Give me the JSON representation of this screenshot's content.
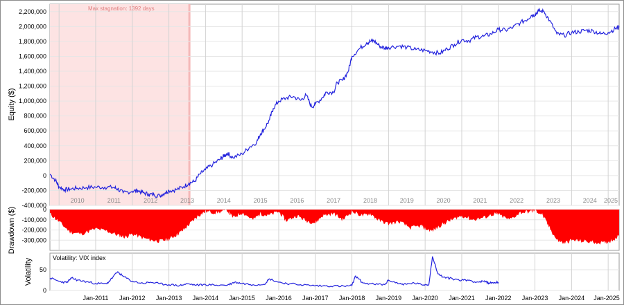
{
  "chart_data": [
    {
      "type": "line",
      "name": "equity",
      "ylabel": "Equity ($)",
      "ylim": [
        -400000,
        2300000
      ],
      "yticks": [
        -400000,
        -200000,
        0,
        200000,
        400000,
        600000,
        800000,
        1000000,
        1200000,
        1400000,
        1600000,
        1800000,
        2000000,
        2200000
      ],
      "ytick_labels": [
        "-400,000",
        "-200,000",
        "0",
        "200,000",
        "400,000",
        "600,000",
        "800,000",
        "1,000,000",
        "1,200,000",
        "1,400,000",
        "1,600,000",
        "1,800,000",
        "2,000,000",
        "2,200,000"
      ],
      "year_labels": [
        "2010",
        "2011",
        "2012",
        "2013",
        "2014",
        "2015",
        "2016",
        "2017",
        "2018",
        "2019",
        "2020",
        "2021",
        "2022",
        "2023",
        "2024",
        "2025"
      ],
      "annotation": "Max stagnation: 1392 days",
      "stagnation_period": [
        2009.75,
        2013.56
      ],
      "grid": true,
      "color": "#2222dd",
      "x": [
        2009.75,
        2009.9,
        2010.0,
        2010.15,
        2010.3,
        2010.5,
        2010.75,
        2011.0,
        2011.25,
        2011.5,
        2011.6,
        2011.75,
        2012.0,
        2012.15,
        2012.3,
        2012.45,
        2012.6,
        2012.75,
        2012.9,
        2013.0,
        2013.2,
        2013.4,
        2013.55,
        2013.7,
        2013.85,
        2014.0,
        2014.2,
        2014.4,
        2014.5,
        2014.6,
        2014.75,
        2015.0,
        2015.2,
        2015.4,
        2015.5,
        2015.6,
        2015.75,
        2015.85,
        2016.0,
        2016.2,
        2016.4,
        2016.6,
        2016.75,
        2016.9,
        2017.0,
        2017.2,
        2017.3,
        2017.5,
        2017.6,
        2017.75,
        2017.9,
        2018.0,
        2018.2,
        2018.4,
        2018.5,
        2018.6,
        2018.75,
        2018.9,
        2019.0,
        2019.3,
        2019.5,
        2019.75,
        2020.0,
        2020.2,
        2020.4,
        2020.6,
        2020.8,
        2021.0,
        2021.2,
        2021.4,
        2021.6,
        2021.8,
        2022.0,
        2022.2,
        2022.4,
        2022.6,
        2022.8,
        2022.9,
        2023.0,
        2023.1,
        2023.25,
        2023.4,
        2023.6,
        2023.8,
        2024.0,
        2024.2,
        2024.4,
        2024.6,
        2024.8,
        2025.0,
        2025.2,
        2025.3
      ],
      "y": [
        20000,
        -60000,
        -150000,
        -190000,
        -180000,
        -170000,
        -160000,
        -155000,
        -155000,
        -160000,
        -180000,
        -230000,
        -210000,
        -200000,
        -230000,
        -250000,
        -260000,
        -270000,
        -230000,
        -200000,
        -190000,
        -150000,
        -100000,
        -80000,
        20000,
        80000,
        150000,
        220000,
        260000,
        300000,
        240000,
        290000,
        380000,
        450000,
        560000,
        620000,
        750000,
        900000,
        1000000,
        1040000,
        1060000,
        1010000,
        1080000,
        920000,
        960000,
        1050000,
        1120000,
        1120000,
        1250000,
        1280000,
        1400000,
        1600000,
        1700000,
        1780000,
        1800000,
        1810000,
        1740000,
        1710000,
        1720000,
        1740000,
        1720000,
        1690000,
        1680000,
        1660000,
        1640000,
        1700000,
        1760000,
        1820000,
        1810000,
        1860000,
        1870000,
        1900000,
        1960000,
        1950000,
        1990000,
        2050000,
        2100000,
        2150000,
        2160000,
        2210000,
        2200000,
        2080000,
        1900000,
        1880000,
        1920000,
        1930000,
        1950000,
        1940000,
        1900000,
        1920000,
        1970000,
        1990000
      ]
    },
    {
      "type": "area",
      "name": "drawdown",
      "ylabel": "Drawdown ($)",
      "ylim": [
        -400000,
        0
      ],
      "yticks": [
        0,
        -100000,
        -200000,
        -300000
      ],
      "ytick_labels": [
        "0",
        "-100,000",
        "-200,000",
        "-300,000"
      ],
      "color": "#ff0000",
      "grid": true,
      "x": [
        2009.75,
        2010.0,
        2010.3,
        2010.6,
        2011.0,
        2011.3,
        2011.6,
        2011.8,
        2012.0,
        2012.3,
        2012.5,
        2012.75,
        2013.0,
        2013.2,
        2013.4,
        2013.6,
        2013.8,
        2014.0,
        2014.3,
        2014.6,
        2014.75,
        2015.0,
        2015.3,
        2015.5,
        2015.7,
        2016.0,
        2016.2,
        2016.5,
        2016.75,
        2017.0,
        2017.2,
        2017.5,
        2017.75,
        2018.0,
        2018.3,
        2018.5,
        2018.75,
        2019.0,
        2019.3,
        2019.6,
        2019.9,
        2020.0,
        2020.2,
        2020.4,
        2020.6,
        2020.8,
        2021.0,
        2021.3,
        2021.6,
        2021.9,
        2022.0,
        2022.3,
        2022.6,
        2022.9,
        2023.0,
        2023.2,
        2023.4,
        2023.6,
        2023.8,
        2024.0,
        2024.3,
        2024.6,
        2024.9,
        2025.1,
        2025.3
      ],
      "y": [
        -40000,
        -120000,
        -220000,
        -240000,
        -190000,
        -210000,
        -250000,
        -270000,
        -240000,
        -280000,
        -300000,
        -310000,
        -290000,
        -250000,
        -200000,
        -130000,
        -60000,
        -20000,
        -30000,
        -10000,
        -80000,
        -30000,
        -100000,
        -40000,
        -60000,
        -20000,
        -110000,
        -60000,
        -110000,
        -130000,
        -60000,
        -40000,
        -100000,
        -20000,
        -60000,
        -40000,
        -110000,
        -140000,
        -120000,
        -180000,
        -160000,
        -190000,
        -210000,
        -160000,
        -120000,
        -90000,
        -60000,
        -100000,
        -80000,
        -40000,
        -50000,
        -100000,
        -30000,
        -20000,
        -10000,
        -50000,
        -180000,
        -300000,
        -330000,
        -300000,
        -310000,
        -320000,
        -330000,
        -300000,
        -260000
      ]
    },
    {
      "type": "line",
      "name": "volatility",
      "ylabel": "Volatility",
      "legend": "Volatility: VIX index",
      "ylim": [
        0,
        90
      ],
      "yticks": [
        0,
        50
      ],
      "ytick_labels": [
        "0",
        "50"
      ],
      "color": "#2222dd",
      "grid": true,
      "xtick_labels": [
        "Jan-2011",
        "Jan-2012",
        "Jan-2013",
        "Jan-2014",
        "Jan-2015",
        "Jan-2016",
        "Jan-2017",
        "Jan-2018",
        "Jan-2019",
        "Jan-2020",
        "Jan-2021",
        "Jan-2022",
        "Jan-2023",
        "Jan-2024",
        "Jan-2025"
      ],
      "x": [
        2009.75,
        2010.0,
        2010.2,
        2010.35,
        2010.5,
        2010.75,
        2011.0,
        2011.3,
        2011.4,
        2011.6,
        2011.75,
        2012.0,
        2012.3,
        2012.5,
        2012.75,
        2013.0,
        2013.3,
        2013.5,
        2013.75,
        2014.0,
        2014.3,
        2014.6,
        2014.8,
        2015.0,
        2015.3,
        2015.6,
        2015.75,
        2016.0,
        2016.3,
        2016.6,
        2016.9,
        2017.2,
        2017.5,
        2017.8,
        2018.0,
        2018.1,
        2018.3,
        2018.6,
        2018.9,
        2019.0,
        2019.3,
        2019.5,
        2019.7,
        2019.9,
        2020.1,
        2020.2,
        2020.35,
        2020.5,
        2020.75,
        2021.0,
        2021.2,
        2021.4,
        2021.6,
        2021.75,
        2021.9,
        2022.0
      ],
      "y": [
        30,
        22,
        19,
        30,
        25,
        21,
        17,
        16,
        25,
        45,
        34,
        22,
        17,
        20,
        16,
        14,
        12,
        16,
        13,
        14,
        13,
        13,
        20,
        17,
        14,
        15,
        28,
        20,
        16,
        14,
        12,
        11,
        11,
        10,
        12,
        35,
        18,
        15,
        14,
        25,
        16,
        15,
        18,
        14,
        14,
        82,
        40,
        32,
        28,
        25,
        25,
        20,
        22,
        18,
        19,
        20
      ]
    }
  ]
}
